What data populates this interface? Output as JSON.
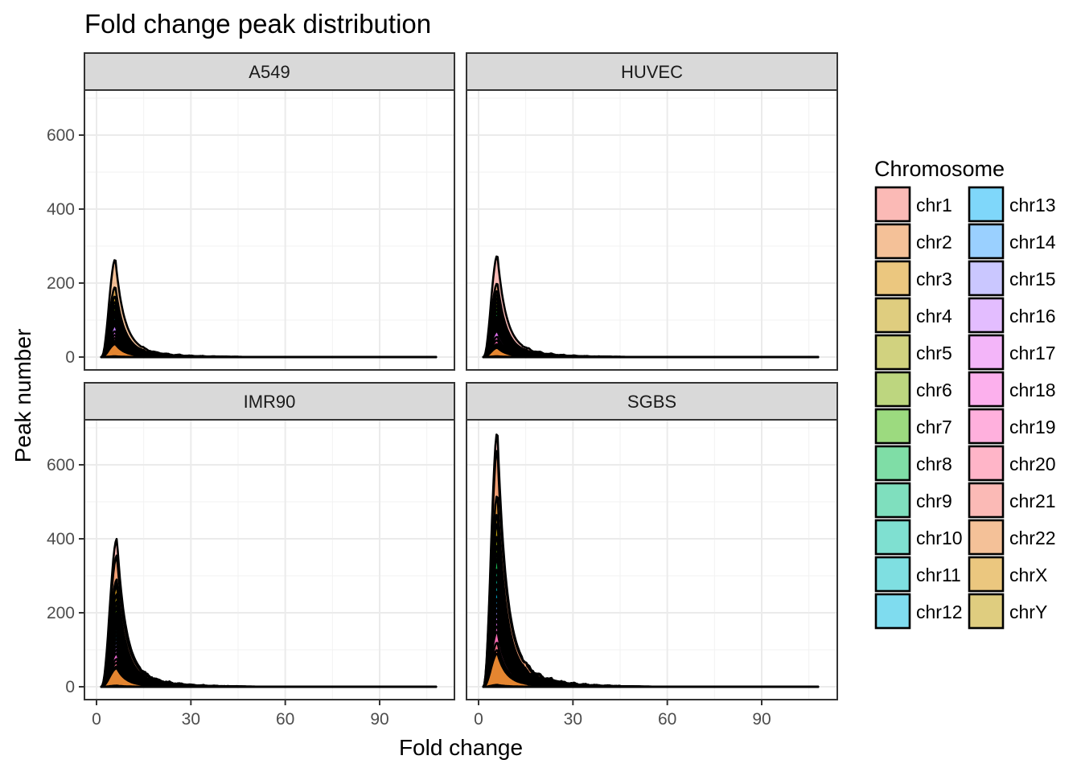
{
  "chart_data": {
    "type": "area",
    "subtype": "density-curves-faceted",
    "title": "Fold change peak distribution",
    "xlabel": "Fold change",
    "ylabel": "Peak number",
    "xlim": [
      0,
      110
    ],
    "ylim": [
      0,
      700
    ],
    "x_ticks": [
      0,
      30,
      60,
      90
    ],
    "y_ticks": [
      0,
      200,
      400,
      600
    ],
    "grid": true,
    "legend": {
      "title": "Chromosome",
      "position": "right",
      "columns": 2,
      "entries": [
        "chr1",
        "chr2",
        "chr3",
        "chr4",
        "chr5",
        "chr6",
        "chr7",
        "chr8",
        "chr9",
        "chr10",
        "chr11",
        "chr12",
        "chr13",
        "chr14",
        "chr15",
        "chr16",
        "chr17",
        "chr18",
        "chr19",
        "chr20",
        "chr21",
        "chr22",
        "chrX",
        "chrY"
      ],
      "colors": [
        "#F8766D",
        "#EA8331",
        "#D89000",
        "#C09B00",
        "#A3A500",
        "#7CAE00",
        "#39B600",
        "#00BB4E",
        "#00BF7D",
        "#00C1A3",
        "#00BFC4",
        "#00BAE0",
        "#00B0F6",
        "#35A2FF",
        "#9590FF",
        "#C77CFF",
        "#E76BF3",
        "#FA62DB",
        "#FF62BC",
        "#FF6C91",
        "#F8766D",
        "#EA8331",
        "#D89000",
        "#C09B00"
      ]
    },
    "facets": [
      {
        "name": "A549",
        "peak_x": 6,
        "series_peaks": {
          "chr1": 140,
          "chr2": 265,
          "chr3": 190,
          "chr4": 165,
          "chr5": 150,
          "chr6": 140,
          "chr7": 135,
          "chr8": 125,
          "chr9": 120,
          "chr10": 115,
          "chr11": 112,
          "chr12": 108,
          "chr13": 100,
          "chr14": 95,
          "chr15": 92,
          "chr16": 90,
          "chr17": 85,
          "chr18": 70,
          "chr19": 60,
          "chr20": 52,
          "chr21": 45,
          "chr22": 40,
          "chrX": 35,
          "chrY": 2
        }
      },
      {
        "name": "HUVEC",
        "peak_x": 6,
        "series_peaks": {
          "chr1": 275,
          "chr2": 200,
          "chr3": 180,
          "chr4": 170,
          "chr5": 160,
          "chr6": 150,
          "chr7": 140,
          "chr8": 130,
          "chr9": 120,
          "chr10": 110,
          "chr11": 105,
          "chr12": 100,
          "chr13": 95,
          "chr14": 90,
          "chr15": 85,
          "chr16": 80,
          "chr17": 75,
          "chr18": 70,
          "chr19": 55,
          "chr20": 45,
          "chr21": 35,
          "chr22": 30,
          "chrX": 25,
          "chrY": 2
        }
      },
      {
        "name": "IMR90",
        "peak_x": 6.5,
        "series_peaks": {
          "chr1": 400,
          "chr2": 355,
          "chr3": 290,
          "chr4": 275,
          "chr5": 250,
          "chr6": 230,
          "chr7": 215,
          "chr8": 200,
          "chr9": 190,
          "chr10": 180,
          "chr11": 170,
          "chr12": 160,
          "chr13": 150,
          "chr14": 140,
          "chr15": 130,
          "chr16": 120,
          "chr17": 110,
          "chr18": 100,
          "chr19": 90,
          "chr20": 75,
          "chr21": 65,
          "chr22": 55,
          "chrX": 50,
          "chrY": 3
        }
      },
      {
        "name": "SGBS",
        "peak_x": 6,
        "series_peaks": {
          "chr1": 690,
          "chr2": 645,
          "chr3": 520,
          "chr4": 470,
          "chr5": 445,
          "chr6": 410,
          "chr7": 385,
          "chr8": 365,
          "chr9": 350,
          "chr10": 320,
          "chr11": 300,
          "chr12": 280,
          "chr13": 260,
          "chr14": 240,
          "chr15": 225,
          "chr16": 210,
          "chr17": 195,
          "chr18": 180,
          "chr19": 165,
          "chr20": 150,
          "chr21": 120,
          "chr22": 100,
          "chrX": 90,
          "chrY": 5
        }
      }
    ]
  }
}
